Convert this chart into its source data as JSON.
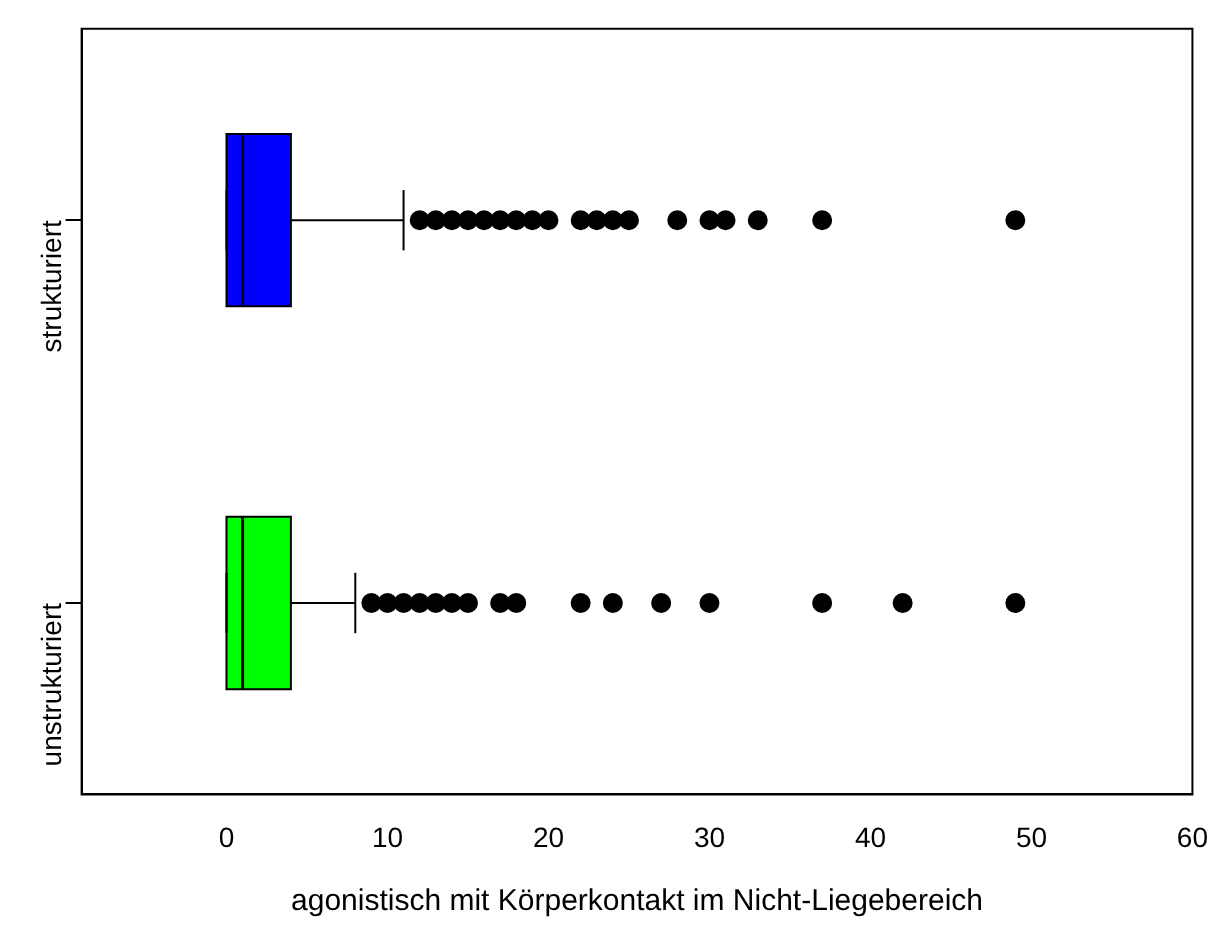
{
  "chart_data": {
    "type": "box",
    "orientation": "horizontal",
    "xlabel": "agonistisch mit Körperkontakt im Nicht-Liegebereich",
    "categories": [
      "strukturiert",
      "unstrukturiert"
    ],
    "colors": [
      "#0000ff",
      "#00ff00"
    ],
    "boxes": [
      {
        "low": 0,
        "q1": 0,
        "median": 1,
        "q3": 4,
        "high": 11,
        "outliers": [
          12,
          13,
          14,
          15,
          16,
          17,
          18,
          19,
          20,
          22,
          23,
          24,
          25,
          28,
          30,
          31,
          33,
          37,
          49
        ]
      },
      {
        "low": 0,
        "q1": 0,
        "median": 1,
        "q3": 4,
        "high": 8,
        "outliers": [
          9,
          10,
          11,
          12,
          13,
          14,
          15,
          17,
          18,
          22,
          24,
          27,
          30,
          37,
          42,
          49
        ]
      }
    ],
    "xlim": [
      -9,
      60
    ],
    "xticks": [
      0,
      10,
      20,
      30,
      40,
      50,
      60
    ],
    "grid": false,
    "legend": false,
    "marker": "circle"
  }
}
